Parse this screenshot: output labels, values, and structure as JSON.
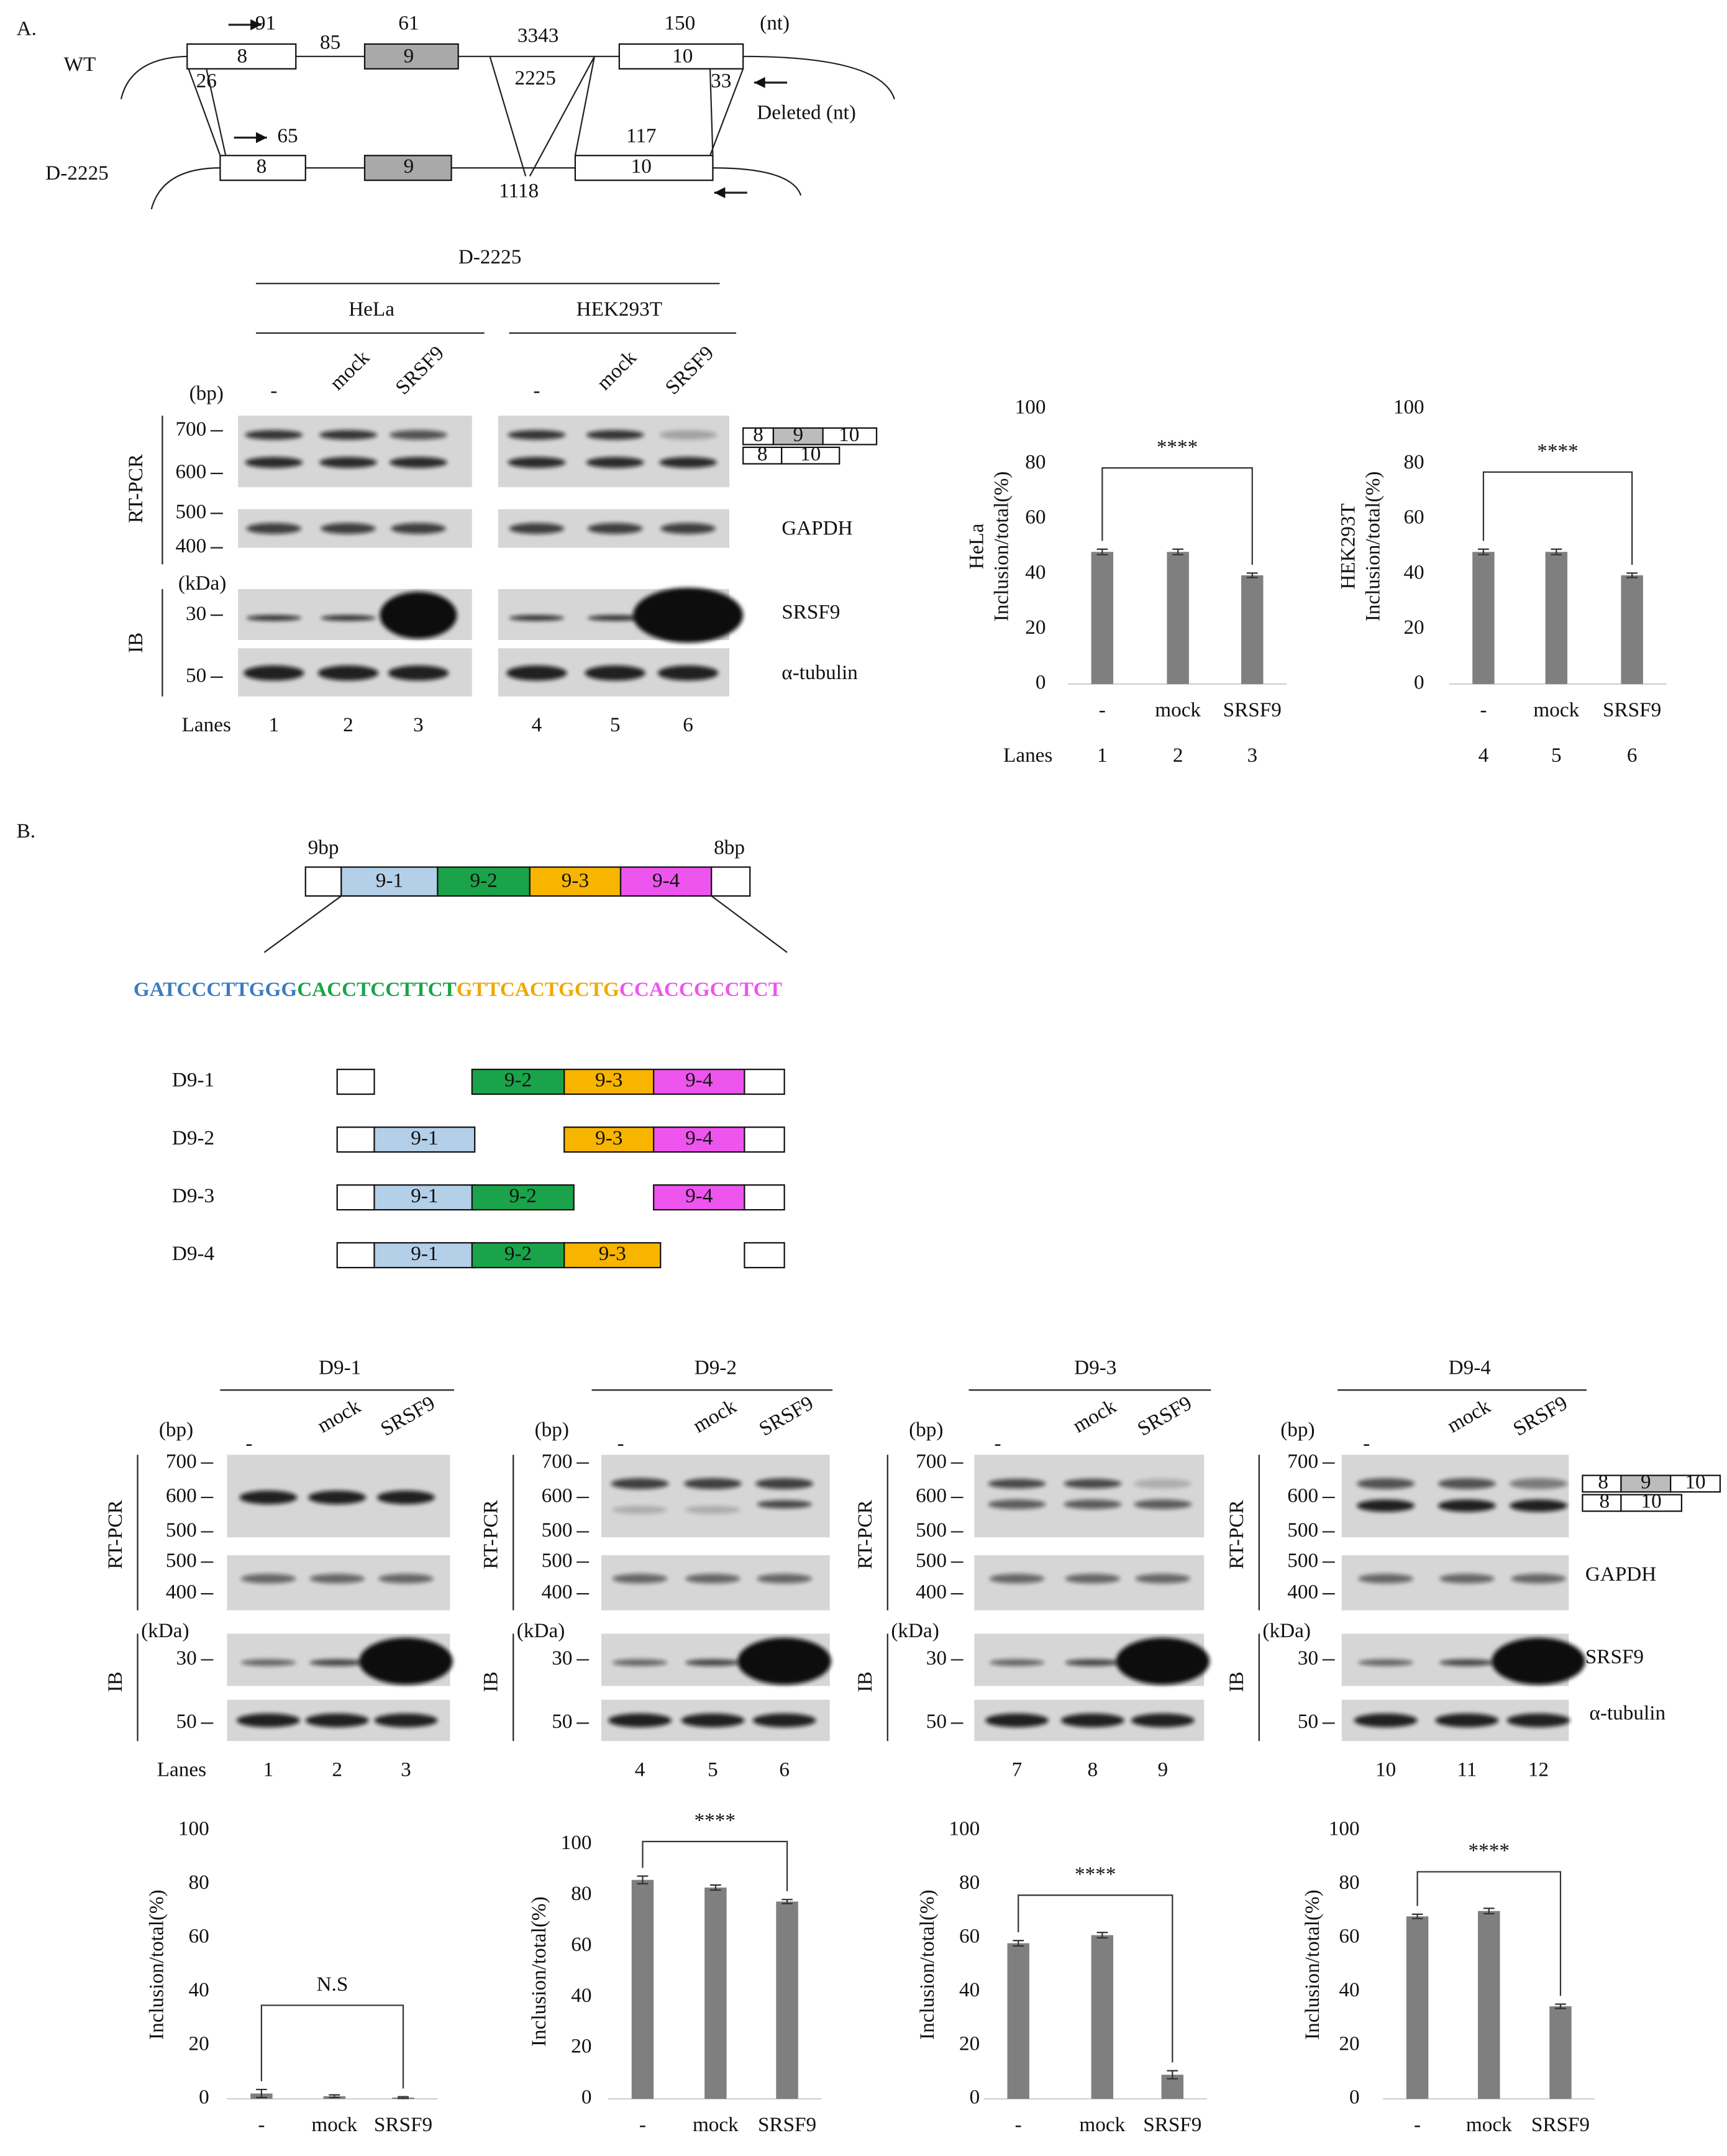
{
  "panel_a": {
    "label": "A.",
    "wt": "WT",
    "mutant": "D-2225",
    "diagram_labels": [
      "91",
      "85",
      "61",
      "3343",
      "150",
      "(nt)",
      "8",
      "9",
      "10",
      "2225",
      "26",
      "33",
      "Deleted (nt)",
      "65",
      "117",
      "1118",
      "8",
      "9",
      "10"
    ],
    "gel": {
      "header": "D-2225",
      "cells": [
        "HeLa",
        "HEK293T"
      ],
      "bp_unit": "(bp)",
      "kda_unit": "(kDa)",
      "treatments": [
        "-",
        "mock",
        "SRSF9",
        "-",
        "mock",
        "SRSF9"
      ],
      "size_labels": [
        "700",
        "600",
        "500",
        "400",
        "30",
        "50"
      ],
      "row_groups": [
        "RT-PCR",
        "IB"
      ],
      "targets": [
        "GAPDH",
        "SRSF9",
        "α-tubulin"
      ],
      "lanes_label": "Lanes",
      "lanes": [
        "1",
        "2",
        "3",
        "4",
        "5",
        "6"
      ],
      "exon_labels": [
        "8",
        "9",
        "10",
        "8",
        "10"
      ]
    }
  },
  "panel_b": {
    "label": "B.",
    "flank_labels": [
      "9bp",
      "8bp"
    ],
    "segments": [
      "9-1",
      "9-2",
      "9-3",
      "9-4"
    ],
    "sequence": [
      "GATCCCTTGGG",
      "CACCTCCTTCT",
      "GTTCACTGCTG",
      "CCACCGCCTCT"
    ],
    "constructs": [
      {
        "name": "D9-1",
        "segments": [
          "9-2",
          "9-3",
          "9-4"
        ]
      },
      {
        "name": "D9-2",
        "segments": [
          "9-1",
          "9-3",
          "9-4"
        ]
      },
      {
        "name": "D9-3",
        "segments": [
          "9-1",
          "9-2",
          "9-4"
        ]
      },
      {
        "name": "D9-4",
        "segments": [
          "9-1",
          "9-2",
          "9-3"
        ]
      }
    ],
    "gels": [
      {
        "title": "D9-1",
        "bp_unit": "(bp)",
        "kda_unit": "(kDa)",
        "treatments": [
          "-",
          "mock",
          "SRSF9"
        ],
        "size_labels": [
          "700",
          "600",
          "500",
          "500",
          "400",
          "30",
          "50"
        ],
        "row_groups": [
          "RT-PCR",
          "IB"
        ],
        "lanes_label": "Lanes",
        "lanes": [
          "1",
          "2",
          "3"
        ]
      },
      {
        "title": "D9-2",
        "bp_unit": "(bp)",
        "kda_unit": "(kDa)",
        "treatments": [
          "-",
          "mock",
          "SRSF9"
        ],
        "size_labels": [
          "700",
          "600",
          "500",
          "500",
          "400",
          "30",
          "50"
        ],
        "row_groups": [
          "RT-PCR",
          "IB"
        ],
        "lanes": [
          "4",
          "5",
          "6"
        ]
      },
      {
        "title": "D9-3",
        "bp_unit": "(bp)",
        "kda_unit": "(kDa)",
        "treatments": [
          "-",
          "mock",
          "SRSF9"
        ],
        "size_labels": [
          "700",
          "600",
          "500",
          "500",
          "400",
          "30",
          "50"
        ],
        "row_groups": [
          "RT-PCR",
          "IB"
        ],
        "lanes": [
          "7",
          "8",
          "9"
        ]
      },
      {
        "title": "D9-4",
        "bp_unit": "(bp)",
        "kda_unit": "(kDa)",
        "treatments": [
          "-",
          "mock",
          "SRSF9"
        ],
        "size_labels": [
          "700",
          "600",
          "500",
          "500",
          "400",
          "30",
          "50"
        ],
        "row_groups": [
          "RT-PCR",
          "IB"
        ],
        "lanes": [
          "10",
          "11",
          "12"
        ]
      }
    ],
    "targets": [
      "GAPDH",
      "SRSF9",
      "α-tubulin"
    ],
    "exon_labels": [
      "8",
      "9",
      "10",
      "8",
      "10"
    ]
  },
  "chart_data": [
    {
      "type": "bar",
      "y_label": [
        "HeLa",
        "Inclusion/total(%)"
      ],
      "categories": [
        "-",
        "mock",
        "SRSF9"
      ],
      "values": [
        48,
        48,
        39.5
      ],
      "errors": [
        1,
        1,
        0.8
      ],
      "color": "#7f7f7f",
      "ylim": [
        0,
        100
      ],
      "yticks": [
        0,
        20,
        40,
        60,
        80,
        100
      ],
      "annotation": "****",
      "lanes_label": "Lanes",
      "lanes": [
        "1",
        "2",
        "3"
      ]
    },
    {
      "type": "bar",
      "y_label": [
        "HEK293T",
        "Inclusion/total(%)"
      ],
      "categories": [
        "-",
        "mock",
        "SRSF9"
      ],
      "values": [
        48,
        48,
        39.5
      ],
      "errors": [
        1,
        1,
        0.8
      ],
      "color": "#7f7f7f",
      "ylim": [
        0,
        100
      ],
      "yticks": [
        0,
        20,
        40,
        60,
        80,
        100
      ],
      "annotation": "****",
      "lanes": [
        "4",
        "5",
        "6"
      ]
    },
    {
      "type": "bar",
      "y_label": [
        "Inclusion/total(%)"
      ],
      "categories": [
        "-",
        "mock",
        "SRSF9"
      ],
      "values": [
        2,
        1,
        0.5
      ],
      "errors": [
        1.5,
        0.5,
        0.3
      ],
      "color": "#7f7f7f",
      "ylim": [
        0,
        100
      ],
      "yticks": [
        0,
        20,
        40,
        60,
        80,
        100
      ],
      "annotation": "N.S"
    },
    {
      "type": "bar",
      "y_label": [
        "Inclusion/total(%)"
      ],
      "categories": [
        "-",
        "mock",
        "SRSF9"
      ],
      "values": [
        86,
        83,
        77.5
      ],
      "errors": [
        1.5,
        1,
        0.8
      ],
      "color": "#7f7f7f",
      "ylim": [
        0,
        100
      ],
      "yticks": [
        0,
        20,
        40,
        60,
        80,
        100
      ],
      "annotation": "****"
    },
    {
      "type": "bar",
      "y_label": [
        "Inclusion/total(%)"
      ],
      "categories": [
        "-",
        "mock",
        "SRSF9"
      ],
      "values": [
        58,
        61,
        9
      ],
      "errors": [
        1,
        1,
        1.5
      ],
      "color": "#7f7f7f",
      "ylim": [
        0,
        100
      ],
      "yticks": [
        0,
        20,
        40,
        60,
        80,
        100
      ],
      "annotation": "****"
    },
    {
      "type": "bar",
      "y_label": [
        "Inclusion/total(%)"
      ],
      "categories": [
        "-",
        "mock",
        "SRSF9"
      ],
      "values": [
        68,
        70,
        34.5
      ],
      "errors": [
        0.8,
        1,
        0.8
      ],
      "color": "#7f7f7f",
      "ylim": [
        0,
        100
      ],
      "yticks": [
        0,
        20,
        40,
        60,
        80,
        100
      ],
      "annotation": "****"
    }
  ]
}
